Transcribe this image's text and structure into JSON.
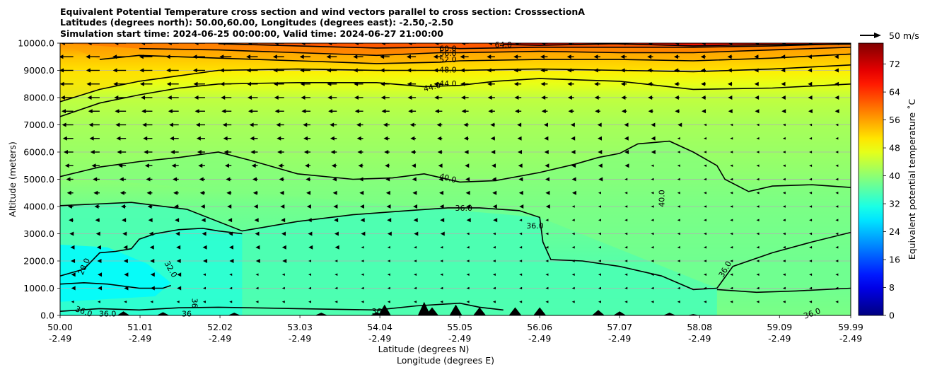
{
  "chart_data": {
    "type": "filled-contour",
    "title_lines": [
      "Equivalent Potential Temperature cross section and wind vectors parallel to cross section: CrosssectionA",
      "Latitudes (degrees north): 50.00,60.00, Longitudes (degrees east): -2.50,-2.50",
      "Simulation start time: 2024-06-25 00:00:00, Valid time: 2024-06-27 21:00:00"
    ],
    "xlabel_lat": "Latitude (degrees N)",
    "xlabel_lon": "Longitude (degrees E)",
    "ylabel": "Altitude (meters)",
    "x_ticks_lat": [
      "50.00",
      "51.01",
      "52.02",
      "53.03",
      "54.04",
      "55.05",
      "56.06",
      "57.07",
      "58.08",
      "59.09",
      "59.99"
    ],
    "x_ticks_lon": [
      "-2.49",
      "-2.49",
      "-2.49",
      "-2.49",
      "-2.49",
      "-2.49",
      "-2.49",
      "-2.49",
      "-2.49",
      "-2.49",
      "-2.49"
    ],
    "xlim": [
      50.0,
      59.99
    ],
    "y_ticks": [
      "0.0",
      "1000.0",
      "2000.0",
      "3000.0",
      "4000.0",
      "5000.0",
      "6000.0",
      "7000.0",
      "8000.0",
      "9000.0",
      "10000.0"
    ],
    "ylim": [
      0,
      10000
    ],
    "grid": "horizontal",
    "colorbar": {
      "label": "Equivalent potential temperature ˚C",
      "ticks": [
        "0",
        "8",
        "16",
        "24",
        "32",
        "40",
        "48",
        "56",
        "64",
        "72"
      ],
      "range": [
        0,
        78
      ],
      "colormap": "jet"
    },
    "quiver_key": {
      "label": "50 m/s",
      "speed": 50
    },
    "contour_levels": [
      28,
      36,
      40,
      44,
      48,
      52,
      56,
      60,
      64
    ],
    "contour_labels": [
      "64.0",
      "60.0",
      "56.0",
      "52.0",
      "48.0",
      "44.0",
      "44.0",
      "40.0",
      "40.0",
      "36.0",
      "36.0",
      "36.0",
      "36.0",
      "36.0",
      "36",
      "36",
      "36",
      "32.0",
      "28.0",
      "36.0"
    ],
    "contours": [
      {
        "level": 36,
        "points": [
          [
            50.0,
            4030
          ],
          [
            50.9,
            4150
          ],
          [
            51.6,
            3900
          ],
          [
            52.3,
            3100
          ],
          [
            53.0,
            3450
          ],
          [
            53.7,
            3700
          ],
          [
            54.4,
            3850
          ],
          [
            54.9,
            3950
          ],
          [
            55.3,
            3950
          ],
          [
            55.8,
            3850
          ],
          [
            56.06,
            3600
          ],
          [
            56.1,
            2700
          ],
          [
            56.2,
            2050
          ],
          [
            56.6,
            2000
          ],
          [
            57.07,
            1800
          ],
          [
            57.6,
            1450
          ],
          [
            58.0,
            950
          ],
          [
            58.3,
            1000
          ]
        ]
      },
      {
        "level": 36,
        "points": [
          [
            50.0,
            1450
          ],
          [
            50.3,
            1700
          ],
          [
            50.5,
            2300
          ],
          [
            50.7,
            2350
          ],
          [
            50.9,
            2450
          ],
          [
            51.0,
            2800
          ],
          [
            51.2,
            3000
          ],
          [
            51.5,
            3150
          ],
          [
            51.8,
            3200
          ],
          [
            52.0,
            3100
          ],
          [
            52.3,
            3000
          ]
        ]
      },
      {
        "level": 36,
        "points": [
          [
            58.3,
            1000
          ],
          [
            58.5,
            1800
          ],
          [
            59.0,
            2300
          ],
          [
            59.5,
            2700
          ],
          [
            59.99,
            3050
          ]
        ]
      },
      {
        "level": 36,
        "points": [
          [
            58.3,
            950
          ],
          [
            58.8,
            850
          ],
          [
            59.3,
            900
          ],
          [
            59.99,
            1000
          ]
        ]
      },
      {
        "level": 36,
        "points": [
          [
            50.0,
            150
          ],
          [
            50.5,
            250
          ],
          [
            51.0,
            200
          ],
          [
            51.5,
            280
          ],
          [
            52.0,
            300
          ],
          [
            53.0,
            250
          ],
          [
            54.0,
            200
          ],
          [
            54.5,
            350
          ],
          [
            55.05,
            450
          ],
          [
            55.3,
            300
          ],
          [
            55.6,
            200
          ]
        ]
      },
      {
        "level": 40,
        "points": [
          [
            50.0,
            5100
          ],
          [
            50.5,
            5450
          ],
          [
            51.0,
            5650
          ],
          [
            51.5,
            5800
          ],
          [
            52.0,
            6000
          ],
          [
            52.4,
            5700
          ],
          [
            53.0,
            5200
          ],
          [
            53.7,
            5000
          ],
          [
            54.2,
            5050
          ],
          [
            54.6,
            5200
          ],
          [
            55.05,
            4900
          ],
          [
            55.5,
            4950
          ],
          [
            56.06,
            5250
          ],
          [
            56.5,
            5550
          ],
          [
            56.8,
            5800
          ],
          [
            57.07,
            5950
          ],
          [
            57.3,
            6300
          ],
          [
            57.7,
            6400
          ],
          [
            58.0,
            6000
          ],
          [
            58.3,
            5500
          ],
          [
            58.4,
            5000
          ],
          [
            58.7,
            4550
          ],
          [
            59.0,
            4750
          ],
          [
            59.5,
            4800
          ],
          [
            59.99,
            4700
          ]
        ]
      },
      {
        "level": 44,
        "points": [
          [
            50.0,
            7300
          ],
          [
            50.5,
            7800
          ],
          [
            51.0,
            8100
          ],
          [
            51.5,
            8350
          ],
          [
            52.0,
            8500
          ],
          [
            53.0,
            8550
          ],
          [
            54.0,
            8550
          ],
          [
            54.6,
            8400
          ],
          [
            55.05,
            8450
          ],
          [
            55.5,
            8600
          ],
          [
            56.06,
            8700
          ],
          [
            57.07,
            8600
          ],
          [
            58.0,
            8300
          ],
          [
            59.0,
            8350
          ],
          [
            59.99,
            8500
          ]
        ]
      },
      {
        "level": 48,
        "points": [
          [
            50.0,
            7850
          ],
          [
            50.5,
            8300
          ],
          [
            51.0,
            8600
          ],
          [
            51.5,
            8800
          ],
          [
            52.0,
            9000
          ],
          [
            53.0,
            9050
          ],
          [
            54.0,
            9000
          ],
          [
            54.6,
            9000
          ],
          [
            55.05,
            9000
          ],
          [
            56.06,
            9050
          ],
          [
            57.07,
            9000
          ],
          [
            58.0,
            8950
          ],
          [
            59.0,
            9050
          ],
          [
            59.99,
            9200
          ]
        ]
      },
      {
        "level": 52,
        "points": [
          [
            50.5,
            9400
          ],
          [
            51.0,
            9550
          ],
          [
            52.0,
            9450
          ],
          [
            53.0,
            9350
          ],
          [
            54.0,
            9250
          ],
          [
            54.8,
            9300
          ],
          [
            55.05,
            9350
          ],
          [
            56.06,
            9400
          ],
          [
            57.07,
            9400
          ],
          [
            58.0,
            9350
          ],
          [
            59.0,
            9450
          ],
          [
            59.99,
            9600
          ]
        ]
      },
      {
        "level": 56,
        "points": [
          [
            51.0,
            9800
          ],
          [
            52.0,
            9750
          ],
          [
            53.0,
            9650
          ],
          [
            54.0,
            9550
          ],
          [
            54.8,
            9650
          ],
          [
            55.05,
            9650
          ],
          [
            56.06,
            9700
          ],
          [
            57.07,
            9650
          ],
          [
            58.0,
            9650
          ],
          [
            59.0,
            9750
          ],
          [
            59.99,
            9850
          ]
        ]
      },
      {
        "level": 60,
        "points": [
          [
            52.0,
            9980
          ],
          [
            53.0,
            9900
          ],
          [
            54.0,
            9820
          ],
          [
            54.8,
            9850
          ],
          [
            55.05,
            9800
          ],
          [
            56.06,
            9850
          ],
          [
            57.07,
            9850
          ],
          [
            58.0,
            9850
          ],
          [
            59.0,
            9900
          ],
          [
            59.99,
            9980
          ]
        ]
      },
      {
        "level": 64,
        "points": [
          [
            55.6,
            9950
          ],
          [
            56.06,
            9920
          ],
          [
            57.0,
            9980
          ],
          [
            58.0,
            9900
          ],
          [
            59.0,
            9950
          ],
          [
            59.99,
            9960
          ]
        ]
      },
      {
        "level": 28,
        "points": [
          [
            50.0,
            1150
          ],
          [
            50.3,
            1200
          ],
          [
            50.6,
            1150
          ],
          [
            51.0,
            1000
          ],
          [
            51.3,
            1000
          ],
          [
            51.4,
            1100
          ]
        ]
      }
    ],
    "terrain_peaks": [
      [
        50.8,
        150
      ],
      [
        51.3,
        120
      ],
      [
        52.2,
        100
      ],
      [
        53.3,
        100
      ],
      [
        54.0,
        120
      ],
      [
        54.1,
        400
      ],
      [
        54.6,
        500
      ],
      [
        54.7,
        300
      ],
      [
        55.0,
        400
      ],
      [
        55.3,
        300
      ],
      [
        55.75,
        300
      ],
      [
        56.06,
        300
      ],
      [
        56.8,
        200
      ],
      [
        57.07,
        150
      ],
      [
        57.7,
        100
      ],
      [
        58.0,
        50
      ]
    ],
    "vectors": [
      {
        "alt": 10000,
        "u": -30
      },
      {
        "alt": 9500,
        "u": -34
      },
      {
        "alt": 9000,
        "u": -33
      },
      {
        "alt": 8500,
        "u": -32
      },
      {
        "alt": 8000,
        "u": -30
      },
      {
        "alt": 7500,
        "u": -28
      },
      {
        "alt": 7000,
        "u": -27
      },
      {
        "alt": 6500,
        "u": -25
      },
      {
        "alt": 6000,
        "u": -23
      },
      {
        "alt": 5500,
        "u": -20
      },
      {
        "alt": 5000,
        "u": -17
      },
      {
        "alt": 4500,
        "u": -15
      },
      {
        "alt": 4000,
        "u": -13
      },
      {
        "alt": 3500,
        "u": -11
      },
      {
        "alt": 3000,
        "u": -9
      },
      {
        "alt": 2500,
        "u": -7
      },
      {
        "alt": 2000,
        "u": -6
      },
      {
        "alt": 1500,
        "u": -5
      },
      {
        "alt": 1000,
        "u": -5
      },
      {
        "alt": 500,
        "u": -4
      }
    ]
  }
}
